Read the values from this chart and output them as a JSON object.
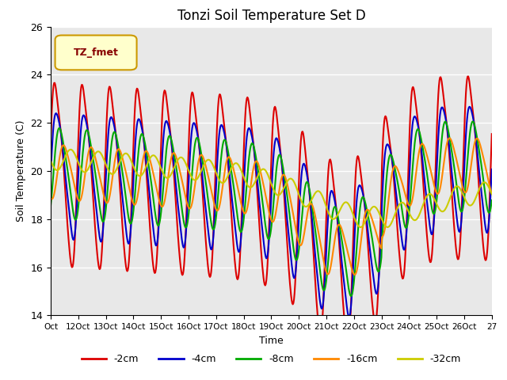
{
  "title": "Tonzi Soil Temperature Set D",
  "xlabel": "Time",
  "ylabel": "Soil Temperature (C)",
  "ylim": [
    14,
    26
  ],
  "xlim": [
    0,
    16
  ],
  "background_color": "#e8e8e8",
  "grid_color": "white",
  "legend_label": "TZ_fmet",
  "legend_box_color": "#ffffcc",
  "legend_box_edge": "#cc9900",
  "x_tick_labels": [
    "Oct",
    "12Oct",
    "13Oct",
    "14Oct",
    "15Oct",
    "16Oct",
    "17Oct",
    "18Oct",
    "19Oct",
    "20Oct",
    "21Oct",
    "22Oct",
    "23Oct",
    "24Oct",
    "25Oct",
    "26Oct",
    "27"
  ],
  "series_colors": [
    "#dd0000",
    "#0000cc",
    "#00aa00",
    "#ff8800",
    "#cccc00"
  ],
  "series_labels": [
    "-2cm",
    "-4cm",
    "-8cm",
    "-16cm",
    "-32cm"
  ],
  "line_width": 1.5
}
